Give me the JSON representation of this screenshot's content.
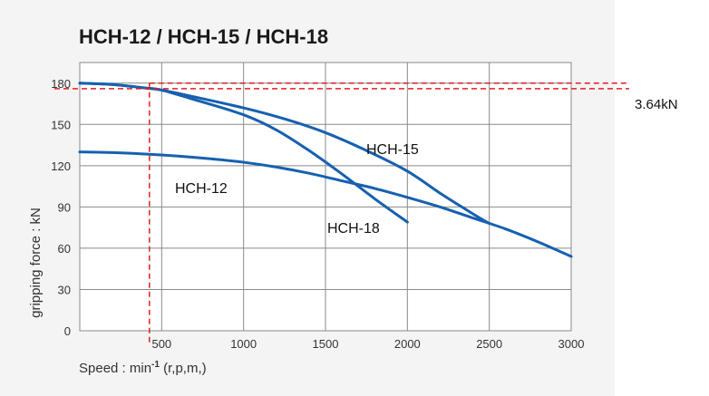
{
  "chart_data": {
    "type": "line",
    "title": "HCH-12 / HCH-15 / HCH-18",
    "xlabel": "Speed : min",
    "xlabel_sup": "-1",
    "xlabel_suffix": " (r,p,m,)",
    "ylabel": "gripping force : kN",
    "xlim": [
      0,
      3000
    ],
    "ylim": [
      0,
      195
    ],
    "xticks": [
      500,
      1000,
      1500,
      2000,
      2500,
      3000
    ],
    "xtick_labels": [
      "500",
      "1000",
      "1500",
      "2000",
      "2500",
      "3000"
    ],
    "yticks": [
      0,
      30,
      60,
      90,
      120,
      150,
      180
    ],
    "ytick_labels": [
      "0",
      "30",
      "60",
      "90",
      "120",
      "150",
      "180"
    ],
    "grid": true,
    "series": [
      {
        "name": "HCH-12",
        "color": "#1660b0",
        "x": [
          0,
          200,
          400,
          600,
          800,
          1000,
          1200,
          1400,
          1600,
          1800,
          2000,
          2200,
          2400,
          2600,
          2800,
          3000
        ],
        "y": [
          130,
          129.5,
          128.5,
          127,
          125,
          122.5,
          119,
          114.5,
          109,
          103.5,
          97,
          90,
          82,
          74,
          64.5,
          54
        ]
      },
      {
        "name": "HCH-15",
        "color": "#1660b0",
        "x": [
          0,
          200,
          400,
          500,
          700,
          1000,
          1250,
          1500,
          1750,
          2000,
          2200,
          2400,
          2500
        ],
        "y": [
          180,
          179,
          176.5,
          175,
          170,
          162,
          154,
          144,
          131,
          116,
          100,
          85,
          78
        ]
      },
      {
        "name": "HCH-18",
        "color": "#1660b0",
        "x": [
          0,
          200,
          400,
          500,
          700,
          1000,
          1200,
          1400,
          1600,
          1800,
          2000
        ],
        "y": [
          180,
          179,
          176.5,
          175,
          168,
          157,
          146,
          131,
          114,
          96,
          79
        ]
      }
    ],
    "annotations": {
      "label_1": "HCH-15",
      "label_2": "HCH-12",
      "label_3": "HCH-18",
      "callout_text": "3.64kN",
      "upper_dashed_y": 180,
      "lower_dashed_y": 176,
      "vertical_dashed_x": 425,
      "dashed_color": "#e31e24"
    }
  }
}
